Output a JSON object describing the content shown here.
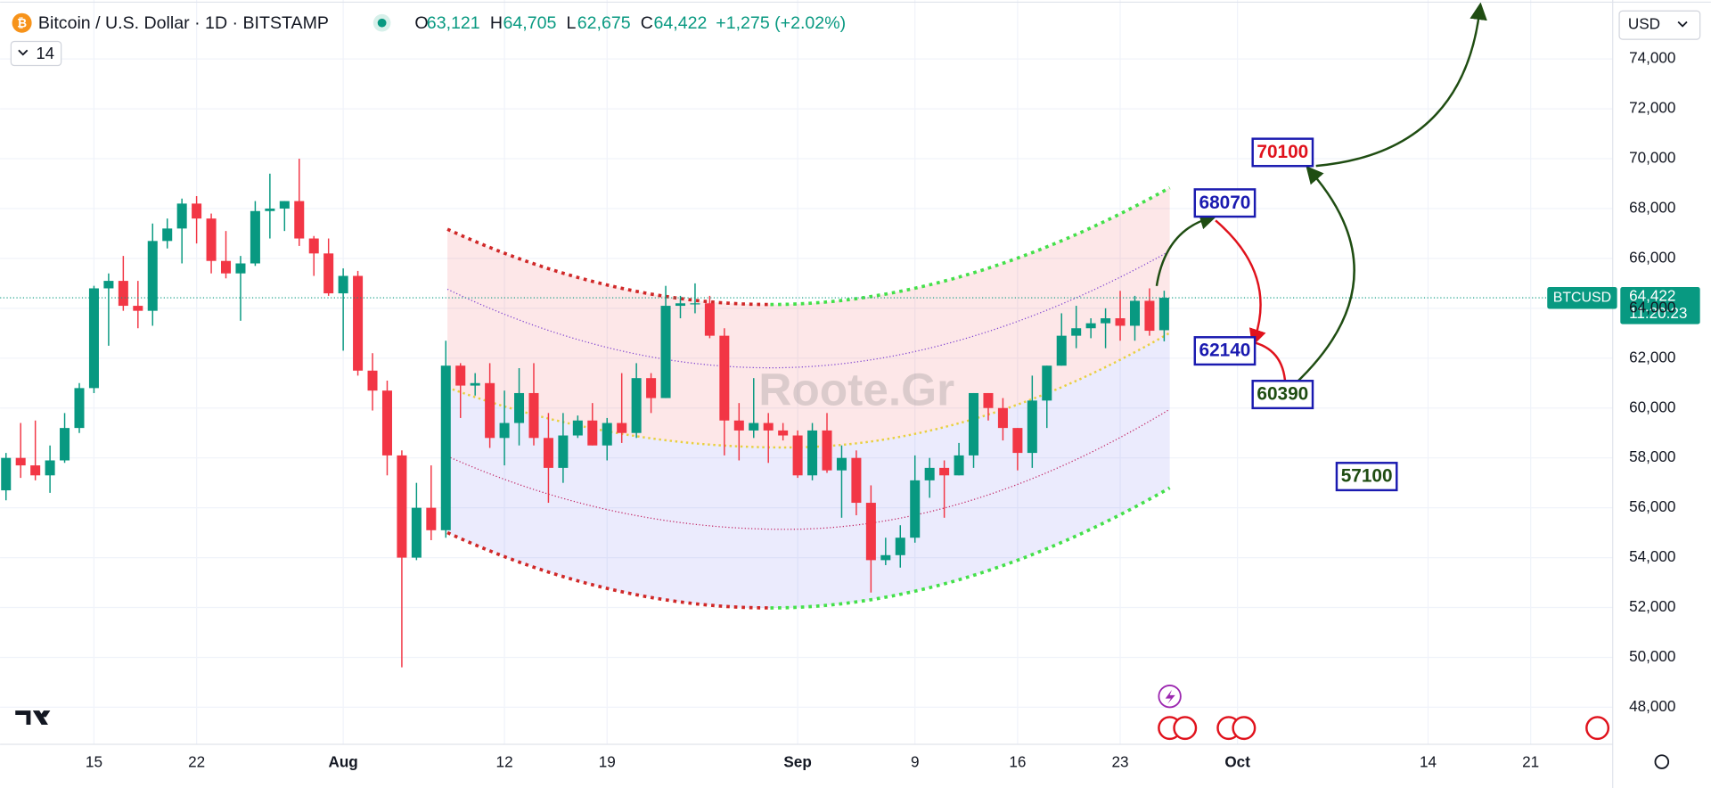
{
  "header": {
    "symbol": "Bitcoin / U.S. Dollar · 1D · BITSTAMP",
    "ohlc": [
      {
        "key": "O",
        "value": "63,121"
      },
      {
        "key": "H",
        "value": "64,705"
      },
      {
        "key": "L",
        "value": "62,675"
      },
      {
        "key": "C",
        "value": "64,422"
      }
    ],
    "change": "+1,275 (+2.02%)",
    "indicator_count": "14",
    "currency": "USD"
  },
  "price_tag": {
    "symbol": "BTCUSD",
    "price": "64,422",
    "countdown": "11:20:23"
  },
  "watermark": "Roote.Gr",
  "chart_data": {
    "type": "candlestick",
    "x": [
      "07-09",
      "07-10",
      "07-11",
      "07-12",
      "07-13",
      "07-14",
      "07-15",
      "07-16",
      "07-17",
      "07-18",
      "07-19",
      "07-20",
      "07-21",
      "07-22",
      "07-23",
      "07-24",
      "07-25",
      "07-26",
      "07-27",
      "07-28",
      "07-29",
      "07-30",
      "07-31",
      "08-01",
      "08-02",
      "08-03",
      "08-04",
      "08-05",
      "08-06",
      "08-07",
      "08-08",
      "08-09",
      "08-10",
      "08-11",
      "08-12",
      "08-13",
      "08-14",
      "08-15",
      "08-16",
      "08-17",
      "08-18",
      "08-19",
      "08-20",
      "08-21",
      "08-22",
      "08-23",
      "08-24",
      "08-25",
      "08-26",
      "08-27",
      "08-28",
      "08-29",
      "08-30",
      "08-31",
      "09-01",
      "09-02",
      "09-03",
      "09-04",
      "09-05",
      "09-06",
      "09-07",
      "09-08",
      "09-09",
      "09-10",
      "09-11",
      "09-12",
      "09-13",
      "09-14",
      "09-15",
      "09-16",
      "09-17",
      "09-18",
      "09-19",
      "09-20",
      "09-21",
      "09-22",
      "09-23",
      "09-24",
      "09-25",
      "09-26"
    ],
    "open": [
      56700,
      58000,
      57700,
      57300,
      57900,
      59200,
      60800,
      64800,
      65100,
      64100,
      63900,
      66700,
      67200,
      68200,
      67600,
      65900,
      65400,
      65800,
      67900,
      68000,
      68300,
      66800,
      66200,
      64600,
      65300,
      61500,
      60700,
      58100,
      54000,
      56000,
      55100,
      61700,
      60900,
      61000,
      58800,
      59400,
      60600,
      58800,
      57600,
      58900,
      59500,
      58500,
      59400,
      59000,
      61200,
      60400,
      64100,
      64200,
      64200,
      62900,
      59500,
      59100,
      59400,
      59100,
      58900,
      57300,
      59100,
      57500,
      58000,
      56200,
      53900,
      54100,
      54800,
      57100,
      57600,
      57300,
      58100,
      60600,
      60000,
      59200,
      58200,
      60300,
      61700,
      62900,
      63200,
      63400,
      63600,
      63300,
      64300,
      63121
    ],
    "high": [
      58200,
      59400,
      59500,
      58500,
      59800,
      61000,
      64900,
      65400,
      66100,
      65100,
      67400,
      67600,
      68400,
      68500,
      67800,
      67100,
      66100,
      68300,
      69400,
      68300,
      70000,
      66900,
      66800,
      65600,
      65500,
      62200,
      61100,
      58300,
      57000,
      57700,
      62700,
      61800,
      61400,
      61800,
      60700,
      61600,
      61800,
      59800,
      59800,
      59700,
      60200,
      59600,
      61400,
      61800,
      61400,
      64900,
      64500,
      65000,
      64500,
      63200,
      60200,
      61200,
      59800,
      59400,
      59100,
      59400,
      59800,
      58500,
      58300,
      56900,
      54800,
      55300,
      58100,
      58000,
      57900,
      58600,
      60600,
      60600,
      60400,
      59200,
      61300,
      61700,
      63800,
      64100,
      63600,
      64000,
      64700,
      64500,
      64800,
      64705
    ],
    "low": [
      56300,
      57200,
      57100,
      56600,
      57800,
      59000,
      60600,
      62500,
      63900,
      63200,
      63300,
      66400,
      65800,
      66600,
      65400,
      65200,
      63500,
      65700,
      66800,
      67100,
      66500,
      65300,
      64500,
      62300,
      61300,
      59900,
      57300,
      49600,
      53900,
      54700,
      54800,
      59600,
      60500,
      58400,
      57700,
      58500,
      58500,
      56200,
      57000,
      58800,
      58500,
      57900,
      58600,
      58800,
      59800,
      60400,
      63600,
      63800,
      62800,
      58100,
      57900,
      58800,
      57800,
      58700,
      57200,
      57100,
      57400,
      55600,
      55700,
      52600,
      53700,
      53600,
      54600,
      56400,
      55600,
      57300,
      57600,
      59500,
      58700,
      57500,
      57600,
      59200,
      61700,
      62400,
      62800,
      62400,
      62700,
      62700,
      62900,
      62675
    ],
    "close": [
      58000,
      57700,
      57300,
      57900,
      59200,
      60800,
      64800,
      65100,
      64100,
      63900,
      66700,
      67200,
      68200,
      67600,
      65900,
      65400,
      65800,
      67900,
      68000,
      68300,
      66800,
      66200,
      64600,
      65300,
      61500,
      60700,
      58100,
      54000,
      56000,
      55100,
      61700,
      60900,
      61000,
      58800,
      59400,
      60600,
      58800,
      57600,
      58900,
      59500,
      58500,
      59400,
      59000,
      61200,
      60400,
      64100,
      64200,
      64200,
      62900,
      59500,
      59100,
      59400,
      59100,
      58900,
      57300,
      59100,
      57500,
      58000,
      56200,
      53900,
      54100,
      54800,
      57100,
      57600,
      57300,
      58100,
      60600,
      60000,
      59200,
      58200,
      60300,
      61700,
      62900,
      63200,
      63400,
      63600,
      63300,
      64300,
      63100,
      64422
    ],
    "up_color": "#089981",
    "down_color": "#f23645",
    "xlim": [
      "07-08",
      "10-26"
    ],
    "xticks": [
      {
        "value": "07-15",
        "label": "15"
      },
      {
        "value": "07-22",
        "label": "22"
      },
      {
        "value": "08-01",
        "label": "Aug"
      },
      {
        "value": "08-12",
        "label": "12"
      },
      {
        "value": "08-19",
        "label": "19"
      },
      {
        "value": "09-01",
        "label": "Sep"
      },
      {
        "value": "09-09",
        "label": "9"
      },
      {
        "value": "09-16",
        "label": "16"
      },
      {
        "value": "09-23",
        "label": "23"
      },
      {
        "value": "10-01",
        "label": "Oct"
      },
      {
        "value": "10-14",
        "label": "14"
      },
      {
        "value": "10-21",
        "label": "21"
      }
    ],
    "ylim": [
      46600,
      76150
    ],
    "yticks": [
      {
        "value": 48000,
        "label": "48,000"
      },
      {
        "value": 50000,
        "label": "50,000"
      },
      {
        "value": 52000,
        "label": "52,000"
      },
      {
        "value": 54000,
        "label": "54,000"
      },
      {
        "value": 56000,
        "label": "56,000"
      },
      {
        "value": 58000,
        "label": "58,000"
      },
      {
        "value": 60000,
        "label": "60,000"
      },
      {
        "value": 62000,
        "label": "62,000"
      },
      {
        "value": 64000,
        "label": "64,000"
      },
      {
        "value": 66000,
        "label": "66,000"
      },
      {
        "value": 68000,
        "label": "68,000"
      },
      {
        "value": 70000,
        "label": "70,000"
      },
      {
        "value": 72000,
        "label": "72,000"
      },
      {
        "value": 74000,
        "label": "74,000"
      }
    ],
    "grid": true,
    "levels": [
      {
        "value": 70100,
        "color": "#e0121c"
      },
      {
        "value": 68070,
        "color": "#1a1ab0"
      },
      {
        "value": 62140,
        "color": "#1a1ab0"
      },
      {
        "value": 60390,
        "color": "#1f4d12"
      },
      {
        "value": 57100,
        "color": "#1f4d12"
      }
    ]
  }
}
